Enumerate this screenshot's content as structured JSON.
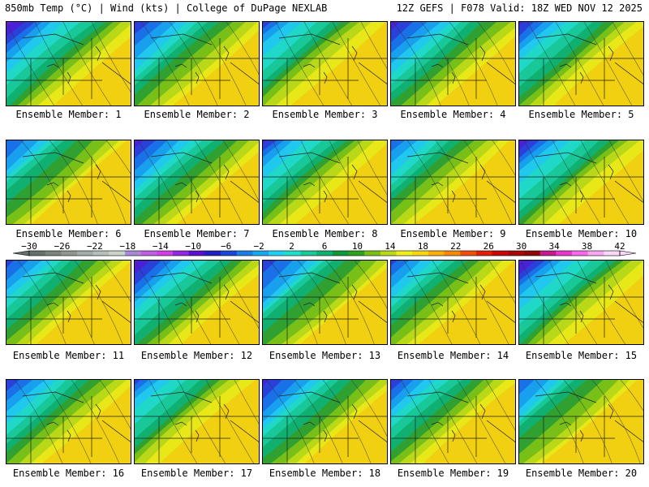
{
  "header": {
    "left": "850mb Temp (°C) | Wind (kts) | College of DuPage NEXLAB",
    "right": "12Z GEFS | F078 Valid: 18Z WED NOV 12 2025"
  },
  "members": [
    {
      "label": "Ensemble Member: 1"
    },
    {
      "label": "Ensemble Member: 2"
    },
    {
      "label": "Ensemble Member: 3"
    },
    {
      "label": "Ensemble Member: 4"
    },
    {
      "label": "Ensemble Member: 5"
    },
    {
      "label": "Ensemble Member: 6"
    },
    {
      "label": "Ensemble Member: 7"
    },
    {
      "label": "Ensemble Member: 8"
    },
    {
      "label": "Ensemble Member: 9"
    },
    {
      "label": "Ensemble Member: 10"
    },
    {
      "label": "Ensemble Member: 11"
    },
    {
      "label": "Ensemble Member: 12"
    },
    {
      "label": "Ensemble Member: 13"
    },
    {
      "label": "Ensemble Member: 14"
    },
    {
      "label": "Ensemble Member: 15"
    },
    {
      "label": "Ensemble Member: 16"
    },
    {
      "label": "Ensemble Member: 17"
    },
    {
      "label": "Ensemble Member: 18"
    },
    {
      "label": "Ensemble Member: 19"
    },
    {
      "label": "Ensemble Member: 20"
    }
  ],
  "colorbar": {
    "min": -30,
    "max": 42,
    "step": 4,
    "ticks": [
      "−30",
      "−26",
      "−22",
      "−18",
      "−14",
      "−10",
      "−6",
      "−2",
      "2",
      "6",
      "10",
      "14",
      "18",
      "22",
      "26",
      "30",
      "34",
      "38",
      "42"
    ],
    "colors": [
      "#66706a",
      "#7a847c",
      "#8e9890",
      "#a2aca6",
      "#b6c0ba",
      "#cad2cc",
      "#aa88d8",
      "#c060e0",
      "#cc40e6",
      "#9028e0",
      "#5a10d0",
      "#2020c0",
      "#1848d8",
      "#1a7ee6",
      "#18a8ee",
      "#20d0f0",
      "#20e0c8",
      "#18c898",
      "#10b070",
      "#109838",
      "#30a020",
      "#78c018",
      "#b8d818",
      "#f0f018",
      "#f8d810",
      "#f8b008",
      "#f88808",
      "#f05008",
      "#e02008",
      "#c80808",
      "#a80808",
      "#900808",
      "#c81890",
      "#e838c8",
      "#f868e8",
      "#f8a8f0",
      "#fcd8f8"
    ]
  }
}
